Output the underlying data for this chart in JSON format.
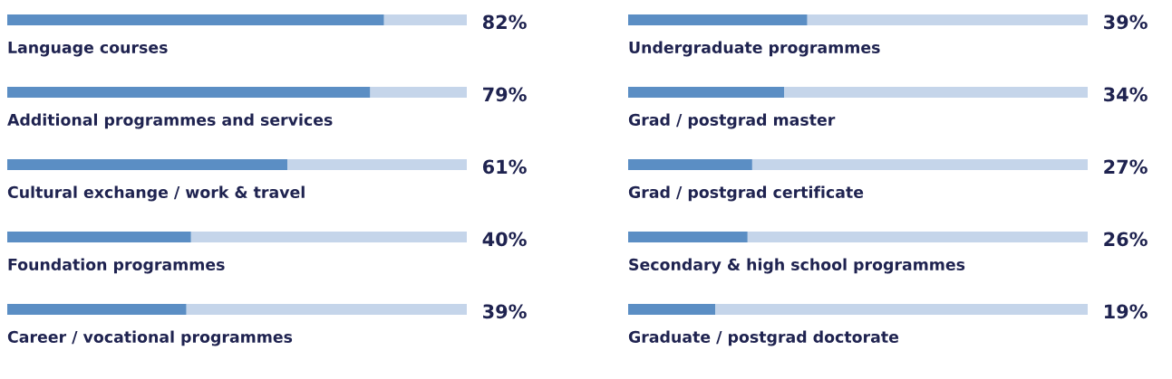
{
  "chart_data": [
    {
      "type": "bar",
      "orientation": "horizontal",
      "stacked": true,
      "xlim": [
        0,
        100
      ],
      "categories": [
        "Language courses",
        "Additional programmes and services",
        "Cultural exchange / work & travel",
        "Foundation programmes",
        "Career / vocational programmes"
      ],
      "series": [
        {
          "color": "#5b8ec4",
          "values": [
            82,
            79,
            61,
            40,
            39
          ],
          "value_labels": [
            "82%",
            "79%",
            "61%",
            "40%",
            "39%"
          ]
        },
        {
          "color": "#c5d5ea",
          "values": [
            18,
            21,
            39,
            60,
            61
          ]
        }
      ]
    },
    {
      "type": "bar",
      "orientation": "horizontal",
      "stacked": true,
      "xlim": [
        0,
        100
      ],
      "categories": [
        "Undergraduate programmes",
        "Grad / postgrad master",
        "Grad / postgrad certificate",
        "Secondary & high school programmes",
        "Graduate / postgrad doctorate"
      ],
      "series": [
        {
          "color": "#5b8ec4",
          "values": [
            39,
            34,
            27,
            26,
            19
          ],
          "value_labels": [
            "39%",
            "34%",
            "27%",
            "26%",
            "19%"
          ]
        },
        {
          "color": "#c5d5ea",
          "values": [
            61,
            66,
            73,
            74,
            81
          ]
        }
      ]
    }
  ]
}
